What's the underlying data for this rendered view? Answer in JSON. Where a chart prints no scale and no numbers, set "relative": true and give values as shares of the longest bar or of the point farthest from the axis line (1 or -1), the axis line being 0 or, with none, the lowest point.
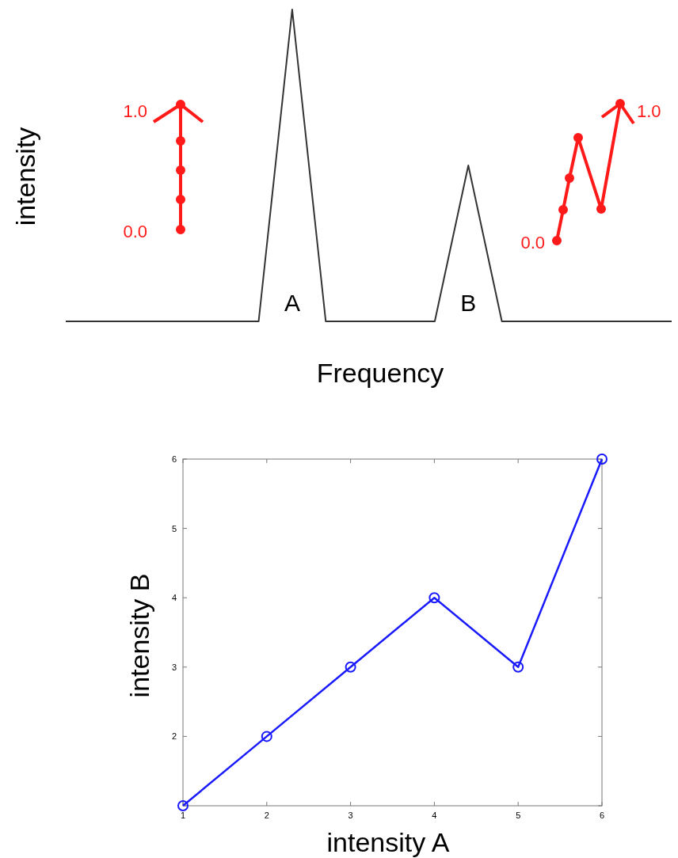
{
  "chart_data": [
    {
      "type": "line",
      "relative": true,
      "xlabel": "Frequency",
      "ylabel": "intensity",
      "color": "#333333",
      "categories": [
        null,
        null,
        null,
        null,
        null,
        null,
        null,
        null,
        null,
        null,
        null,
        null,
        null,
        null,
        null,
        null,
        null,
        null,
        null,
        null,
        null,
        null,
        null,
        null,
        null,
        null,
        null,
        null,
        null,
        null,
        null,
        null,
        null,
        null,
        null,
        null,
        null,
        null,
        null,
        null,
        null,
        null,
        null,
        null,
        null,
        null,
        null,
        null,
        null,
        null,
        null,
        null,
        null,
        null,
        null,
        null,
        null,
        null,
        null,
        null,
        null,
        null,
        null,
        null,
        null,
        null,
        null,
        null,
        null,
        null,
        null,
        null,
        null,
        null
      ],
      "values": [
        0,
        0,
        0,
        0,
        0,
        0,
        0,
        0,
        0,
        0,
        0,
        0,
        0,
        0,
        0,
        0,
        0,
        0,
        0,
        0,
        0,
        0,
        0,
        0,
        0.25,
        0.5,
        0.75,
        1,
        0.75,
        0.5,
        0.25,
        0,
        0,
        0,
        0,
        0,
        0,
        0,
        0,
        0,
        0,
        0,
        0,
        0,
        0,
        0.125,
        0.25,
        0.375,
        0.5,
        0.375,
        0.25,
        0.125,
        0,
        0,
        0,
        0,
        0,
        0,
        0,
        0,
        0,
        0,
        0,
        0,
        0,
        0,
        0,
        0,
        0,
        0,
        0,
        0,
        0,
        0
      ],
      "annotations": [
        "A",
        "B",
        "1.0",
        "0.0",
        "0.0",
        "1.0"
      ]
    },
    {
      "type": "line",
      "xlabel": "intensity A",
      "ylabel": "intensity B",
      "marker": "circle",
      "color": "#1a1aff",
      "x": [
        1,
        2,
        3,
        4,
        5,
        6
      ],
      "values": [
        1,
        2,
        3,
        4,
        3,
        6
      ],
      "xlim": [
        1,
        6
      ],
      "ylim": [
        1,
        6
      ],
      "xticks": [
        1,
        2,
        3,
        4,
        5,
        6
      ],
      "yticks": [
        {
          "value": 1,
          "label": null
        },
        2,
        3,
        4,
        5,
        6
      ]
    }
  ]
}
